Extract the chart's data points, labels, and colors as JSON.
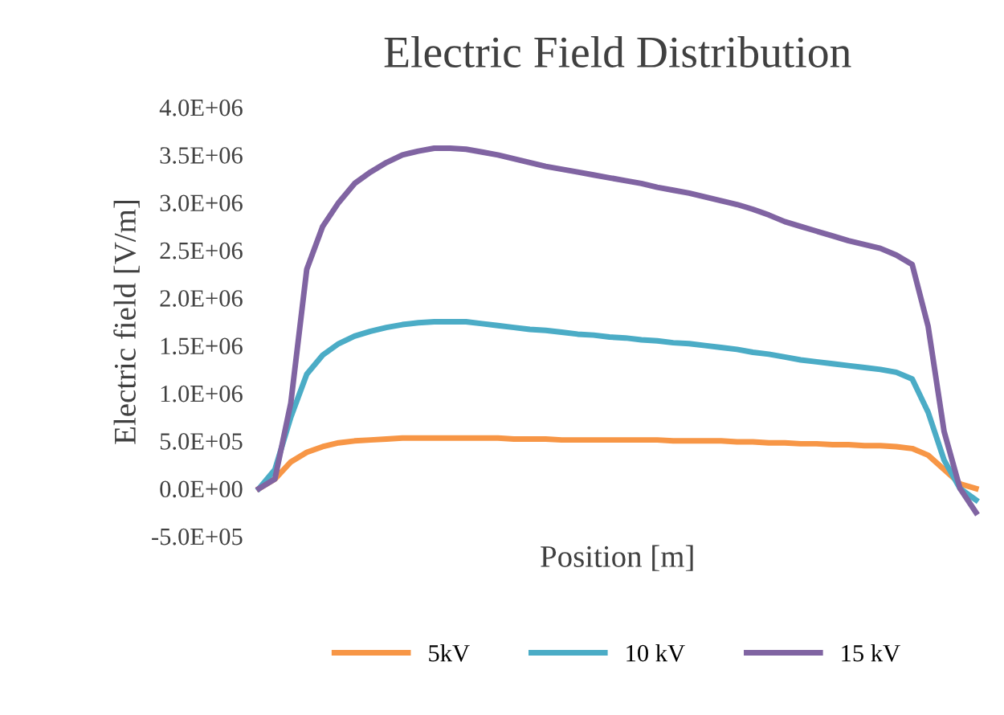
{
  "chart_data": {
    "type": "line",
    "title": "Electric Field Distribution",
    "xlabel": "Position [m]",
    "ylabel": "Electric field [V/m]",
    "categories": [
      null,
      null,
      null,
      null,
      null,
      null,
      null,
      null,
      null,
      null,
      null,
      null,
      null,
      null,
      null,
      null,
      null,
      null,
      null,
      null,
      null,
      null,
      null,
      null,
      null,
      null,
      null,
      null,
      null,
      null,
      null,
      null,
      null,
      null,
      null,
      null,
      null,
      null,
      null,
      null,
      null,
      null,
      null,
      null,
      null,
      null
    ],
    "series": [
      {
        "name": "5kV",
        "color": "#f79646",
        "values": [
          0,
          100000,
          280000,
          380000,
          440000,
          480000,
          500000,
          510000,
          520000,
          530000,
          530000,
          530000,
          530000,
          530000,
          530000,
          530000,
          520000,
          520000,
          520000,
          510000,
          510000,
          510000,
          510000,
          510000,
          510000,
          510000,
          500000,
          500000,
          500000,
          500000,
          490000,
          490000,
          480000,
          480000,
          470000,
          470000,
          460000,
          460000,
          450000,
          450000,
          440000,
          420000,
          350000,
          200000,
          50000,
          0
        ]
      },
      {
        "name": "10 kV",
        "color": "#4bacc6",
        "values": [
          0,
          200000,
          750000,
          1200000,
          1400000,
          1520000,
          1600000,
          1650000,
          1690000,
          1720000,
          1740000,
          1750000,
          1750000,
          1750000,
          1730000,
          1710000,
          1690000,
          1670000,
          1660000,
          1640000,
          1620000,
          1610000,
          1590000,
          1580000,
          1560000,
          1550000,
          1530000,
          1520000,
          1500000,
          1480000,
          1460000,
          1430000,
          1410000,
          1380000,
          1350000,
          1330000,
          1310000,
          1290000,
          1270000,
          1250000,
          1220000,
          1150000,
          800000,
          300000,
          0,
          -120000
        ]
      },
      {
        "name": "15 kV",
        "color": "#8064a2",
        "values": [
          0,
          100000,
          900000,
          2300000,
          2750000,
          3000000,
          3200000,
          3320000,
          3420000,
          3500000,
          3540000,
          3570000,
          3570000,
          3560000,
          3530000,
          3500000,
          3460000,
          3420000,
          3380000,
          3350000,
          3320000,
          3290000,
          3260000,
          3230000,
          3200000,
          3160000,
          3130000,
          3100000,
          3060000,
          3020000,
          2980000,
          2930000,
          2870000,
          2800000,
          2750000,
          2700000,
          2650000,
          2600000,
          2560000,
          2520000,
          2450000,
          2350000,
          1700000,
          600000,
          0,
          -250000
        ]
      }
    ],
    "ylim": [
      -500000,
      4000000
    ],
    "yticks": [
      {
        "value": -500000,
        "label": "-5.0E+05"
      },
      {
        "value": 0,
        "label": "0.0E+00"
      },
      {
        "value": 500000,
        "label": "5.0E+05"
      },
      {
        "value": 1000000,
        "label": "1.0E+06"
      },
      {
        "value": 1500000,
        "label": "1.5E+06"
      },
      {
        "value": 2000000,
        "label": "2.0E+06"
      },
      {
        "value": 2500000,
        "label": "2.5E+06"
      },
      {
        "value": 3000000,
        "label": "3.0E+06"
      },
      {
        "value": 3500000,
        "label": "3.5E+06"
      },
      {
        "value": 4000000,
        "label": "4.0E+06"
      }
    ],
    "tick_labels": "y",
    "grid": false,
    "legend": "bottom",
    "marker": "none",
    "line_style": "solid"
  }
}
